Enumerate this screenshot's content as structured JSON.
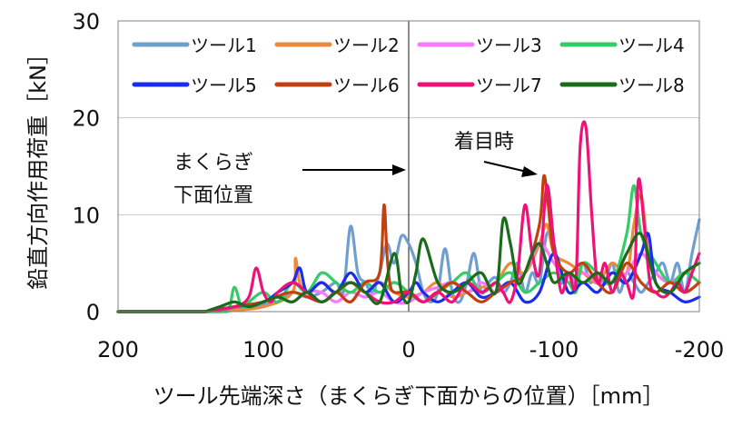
{
  "chart_data": {
    "type": "line",
    "xlabel": "ツール先端深さ（まくらぎ下面からの位置）［mm］",
    "ylabel": "鉛直方向作用荷重［kN］",
    "xlim": [
      200,
      -200
    ],
    "ylim": [
      0,
      30
    ],
    "x_ticks": [
      200,
      100,
      0,
      -100,
      -200
    ],
    "x_tick_labels": [
      "200",
      "100",
      "0",
      "-100",
      "-200"
    ],
    "y_ticks": [
      0,
      10,
      20,
      30
    ],
    "y_tick_labels": [
      "0",
      "10",
      "20",
      "30"
    ],
    "grid": "horizontal",
    "legend_position": "top",
    "annotations": [
      {
        "text": "まくらぎ\n下面位置",
        "x": 0,
        "y": 14.5
      },
      {
        "text": "着目時",
        "x": -95,
        "y": 14
      }
    ],
    "series": [
      {
        "name": "ツール1",
        "color": "#6f9fd0",
        "x": [
          130,
          110,
          90,
          80,
          70,
          60,
          50,
          45,
          40,
          35,
          30,
          25,
          20,
          15,
          10,
          5,
          0,
          -5,
          -10,
          -15,
          -20,
          -25,
          -30,
          -35,
          -40,
          -45,
          -50,
          -55,
          -60,
          -65,
          -70,
          -75,
          -80,
          -85,
          -90,
          -95,
          -100,
          -105,
          -110,
          -115,
          -120,
          -125,
          -130,
          -135,
          -140,
          -145,
          -150,
          -155,
          -160,
          -165,
          -170,
          -175,
          -180,
          -185,
          -190,
          -195,
          -200
        ],
        "y": [
          0,
          0.5,
          1,
          2,
          1.5,
          2,
          3,
          2,
          8.8,
          4,
          3,
          2,
          4,
          7,
          5,
          7.8,
          7,
          5,
          2,
          1,
          2,
          6.5,
          2,
          1,
          3,
          6,
          2,
          3,
          3.5,
          2,
          3,
          5,
          2,
          4,
          3,
          8,
          7,
          3,
          4,
          3,
          5,
          3,
          4,
          3,
          5,
          2,
          4,
          3,
          2,
          3,
          4,
          5,
          3,
          5,
          2,
          6,
          9.5
        ]
      },
      {
        "name": "ツール2",
        "color": "#ee8a3c",
        "x": [
          130,
          100,
          80,
          78,
          75,
          70,
          60,
          50,
          40,
          30,
          20,
          10,
          0,
          -10,
          -20,
          -30,
          -40,
          -50,
          -60,
          -70,
          -80,
          -90,
          -95,
          -100,
          -110,
          -120,
          -130,
          -140,
          -150,
          -155,
          -160,
          -165,
          -170,
          -180,
          -190,
          -200
        ],
        "y": [
          0,
          0.5,
          2,
          5.5,
          3,
          2,
          3,
          2,
          3,
          2,
          3,
          2,
          1.5,
          2,
          3,
          1.5,
          2,
          2.5,
          3,
          5,
          4,
          7,
          9,
          6,
          5,
          4,
          3,
          5,
          4,
          9,
          12,
          6,
          4,
          3,
          4,
          5
        ]
      },
      {
        "name": "ツール3",
        "color": "#ff77ff",
        "x": [
          140,
          130,
          120,
          110,
          100,
          90,
          80,
          70,
          60,
          50,
          40,
          30,
          20,
          10,
          0,
          -10,
          -20,
          -30,
          -40,
          -50,
          -60,
          -70,
          -80,
          -90,
          -100,
          -110,
          -120,
          -130,
          -140,
          -150,
          -160,
          -170,
          -180,
          -190,
          -200
        ],
        "y": [
          0,
          0.5,
          1,
          0.5,
          1,
          1.5,
          1,
          2,
          2,
          1,
          2,
          1.5,
          2,
          1,
          1,
          2,
          2.5,
          3,
          2,
          3,
          2,
          3,
          4,
          7,
          5,
          3,
          4,
          3,
          3,
          4,
          6,
          4,
          3,
          4,
          3
        ]
      },
      {
        "name": "ツール4",
        "color": "#33cc66",
        "x": [
          140,
          125,
          120,
          115,
          110,
          100,
          90,
          80,
          70,
          60,
          50,
          40,
          30,
          20,
          10,
          0,
          -10,
          -20,
          -30,
          -40,
          -50,
          -60,
          -70,
          -80,
          -90,
          -100,
          -110,
          -115,
          -120,
          -130,
          -140,
          -150,
          -155,
          -160,
          -170,
          -180,
          -190,
          -200
        ],
        "y": [
          0,
          0,
          2.5,
          0.5,
          1,
          2,
          1,
          3,
          2,
          4,
          3,
          2,
          3,
          2,
          3,
          2,
          1,
          2,
          3,
          4,
          2,
          3,
          4,
          2,
          3,
          4,
          3,
          2,
          5,
          4,
          3,
          8,
          13,
          8,
          5,
          3,
          4,
          3
        ]
      },
      {
        "name": "ツール5",
        "color": "#1a2cf0",
        "x": [
          140,
          120,
          100,
          90,
          80,
          75,
          70,
          60,
          50,
          40,
          30,
          20,
          10,
          0,
          -5,
          -10,
          -20,
          -30,
          -40,
          -50,
          -60,
          -70,
          -80,
          -90,
          -100,
          -110,
          -120,
          -130,
          -140,
          -150,
          -160,
          -165,
          -170,
          -180,
          -190,
          -200
        ],
        "y": [
          0,
          0.5,
          1,
          2,
          3,
          4.5,
          2,
          3,
          2,
          4,
          2,
          3,
          1,
          2,
          3,
          2,
          1,
          2,
          3,
          1.5,
          2,
          3,
          1,
          2,
          6,
          2,
          3,
          2,
          4,
          3,
          6,
          8,
          3,
          2,
          1,
          1.5
        ]
      },
      {
        "name": "ツール6",
        "color": "#c04010",
        "x": [
          140,
          120,
          100,
          80,
          60,
          50,
          40,
          30,
          20,
          17,
          15,
          13,
          10,
          0,
          -10,
          -20,
          -30,
          -40,
          -50,
          -60,
          -70,
          -80,
          -90,
          -93,
          -96,
          -100,
          -110,
          -120,
          -130,
          -140,
          -150,
          -160,
          -170,
          -180,
          -190,
          -200
        ],
        "y": [
          0,
          0.5,
          1,
          2,
          1,
          2,
          1,
          3,
          4,
          11,
          6,
          3,
          2,
          2,
          1,
          2,
          3,
          2,
          1,
          2,
          3,
          4,
          9,
          14,
          11,
          6,
          4,
          5,
          3,
          2,
          5,
          3,
          2,
          3,
          2,
          3
        ]
      },
      {
        "name": "ツール7",
        "color": "#ee1177",
        "x": [
          140,
          120,
          110,
          105,
          100,
          95,
          90,
          80,
          70,
          60,
          50,
          40,
          30,
          20,
          10,
          0,
          -10,
          -20,
          -30,
          -40,
          -50,
          -60,
          -65,
          -70,
          -75,
          -80,
          -85,
          -90,
          -95,
          -100,
          -105,
          -110,
          -115,
          -118,
          -122,
          -126,
          -130,
          -135,
          -140,
          -145,
          -150,
          -155,
          -158,
          -162,
          -166,
          -170,
          -175,
          -180,
          -185,
          -190,
          -195,
          -200
        ],
        "y": [
          0,
          0.5,
          1.5,
          4.5,
          2,
          1,
          2,
          3,
          2,
          1,
          2,
          3,
          2,
          1,
          1,
          2,
          1,
          2,
          1,
          3,
          2,
          3,
          2,
          1,
          4,
          11,
          6,
          4,
          13,
          7,
          2,
          4,
          3,
          17,
          19,
          10,
          3,
          5,
          2,
          4,
          3,
          2,
          13.5,
          9,
          3,
          2,
          1.5,
          2,
          3,
          2,
          4,
          6
        ]
      },
      {
        "name": "ツール8",
        "color": "#1a6c1a",
        "x": [
          140,
          130,
          120,
          110,
          100,
          90,
          80,
          70,
          60,
          50,
          40,
          30,
          20,
          10,
          5,
          0,
          -5,
          -10,
          -20,
          -30,
          -40,
          -50,
          -60,
          -65,
          -70,
          -75,
          -80,
          -85,
          -90,
          -95,
          -100,
          -110,
          -120,
          -130,
          -140,
          -150,
          -160,
          -170,
          -180,
          -190,
          -200
        ],
        "y": [
          0,
          0.5,
          1,
          0.5,
          1,
          1.5,
          1,
          2,
          1,
          2,
          3,
          2,
          1,
          6,
          2,
          1,
          4,
          7.5,
          3,
          2,
          3,
          4,
          2,
          9.5,
          7,
          3,
          4,
          6,
          7,
          5,
          3,
          4,
          3,
          4,
          3,
          6,
          8,
          3,
          2,
          4,
          5
        ]
      }
    ]
  }
}
